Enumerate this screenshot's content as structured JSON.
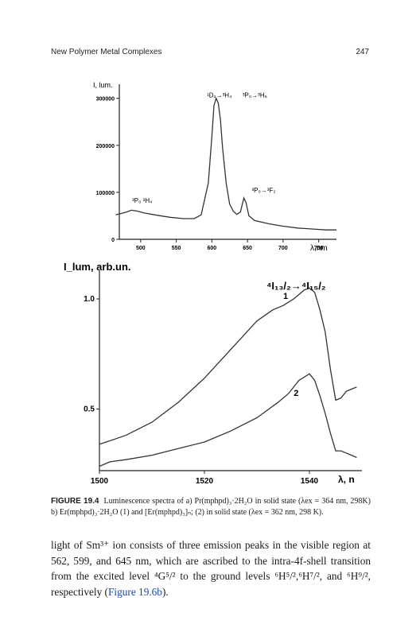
{
  "header": {
    "running_title": "New Polymer Metal Complexes",
    "page_number": "247"
  },
  "chart_data": [
    {
      "type": "line",
      "panel": "a",
      "ylabel": "I, lum.",
      "xlabel": "λ,nm",
      "xlim": [
        470,
        775
      ],
      "ylim": [
        0,
        330000
      ],
      "x_ticks": [
        500,
        550,
        600,
        650,
        700,
        750
      ],
      "y_ticks": [
        0,
        100000,
        200000,
        300000
      ],
      "y_tick_labels": [
        "0",
        "100000",
        "200000",
        "300000"
      ],
      "series": [
        {
          "x": [
            465,
            470,
            480,
            487,
            495,
            505,
            520,
            540,
            560,
            575,
            585,
            595,
            600,
            603,
            606,
            609,
            612,
            615,
            620,
            625,
            630,
            635,
            640,
            645,
            648,
            652,
            660,
            680,
            700,
            720,
            740,
            760,
            775
          ],
          "y": [
            52000,
            54000,
            58000,
            62000,
            60000,
            56000,
            52000,
            47000,
            44000,
            44000,
            52000,
            120000,
            220000,
            285000,
            300000,
            290000,
            255000,
            195000,
            120000,
            75000,
            60000,
            53000,
            58000,
            88000,
            78000,
            50000,
            40000,
            33000,
            28000,
            24000,
            22000,
            20000,
            20000
          ]
        }
      ],
      "annotations": [
        {
          "text": "¹D₂→³H₄",
          "x": 593,
          "y": 302000
        },
        {
          "text": "³P₀→³H₆",
          "x": 643,
          "y": 302000
        },
        {
          "text": "³P₀→³F₂",
          "x": 656,
          "y": 100000
        },
        {
          "text": "³P₀ ³H₄",
          "x": 488,
          "y": 78000
        }
      ]
    },
    {
      "type": "line",
      "panel": "b",
      "ylabel": "I_lum, arb.un.",
      "xlabel": "λ, n",
      "xlim": [
        1500,
        1550
      ],
      "ylim": [
        0.22,
        1.13
      ],
      "x_ticks": [
        1500,
        1520,
        1540
      ],
      "y_ticks": [
        0.5,
        1.0
      ],
      "y_tick_labels": [
        "0.5",
        "1.0"
      ],
      "series": [
        {
          "name": "1",
          "x": [
            1500,
            1505,
            1510,
            1515,
            1520,
            1525,
            1530,
            1533,
            1535,
            1537,
            1539,
            1540,
            1541,
            1542,
            1543,
            1544,
            1545,
            1546,
            1547,
            1548,
            1549
          ],
          "y": [
            0.34,
            0.38,
            0.44,
            0.53,
            0.64,
            0.77,
            0.9,
            0.95,
            0.97,
            1.0,
            1.04,
            1.05,
            1.03,
            0.95,
            0.85,
            0.68,
            0.54,
            0.55,
            0.58,
            0.59,
            0.6
          ]
        },
        {
          "name": "2",
          "x": [
            1500,
            1502,
            1505,
            1510,
            1515,
            1520,
            1525,
            1530,
            1534,
            1536,
            1538,
            1540,
            1541,
            1542,
            1543,
            1544,
            1545,
            1546,
            1547,
            1548,
            1549
          ],
          "y": [
            0.24,
            0.26,
            0.27,
            0.29,
            0.32,
            0.35,
            0.4,
            0.46,
            0.53,
            0.57,
            0.63,
            0.66,
            0.63,
            0.56,
            0.48,
            0.39,
            0.31,
            0.31,
            0.3,
            0.29,
            0.28
          ]
        }
      ],
      "curve_labels": [
        {
          "text": "1",
          "x": 1535,
          "y": 1.0
        },
        {
          "text": "2",
          "x": 1537,
          "y": 0.56
        }
      ],
      "annotation": "⁴I₁₃/₂→⁴I₁₅/₂"
    }
  ],
  "caption": {
    "label": "FIGURE 19.4",
    "text": "Luminescence spectra of a) Pr(mphpd)₃·2H₂O in solid state (λex = 364 nm, 298K) b) Er(mphpd)₃·2H₂O (1) and [Er(mphpd)₃]ₙ; (2) in solid state (λex = 362 nm, 298 K)."
  },
  "body": {
    "text": "light of Sm³⁺ ion consists of three emission peaks in the visible region at 562, 599, and 645 nm, which are ascribed to the intra-4f-shell transition from the excited level ⁴G⁵/² to the ground levels ⁶H⁵/²,⁶H⁷/², and ⁶H⁹/², respectively (",
    "link": "Figure 19.6b",
    "tail": ")."
  }
}
